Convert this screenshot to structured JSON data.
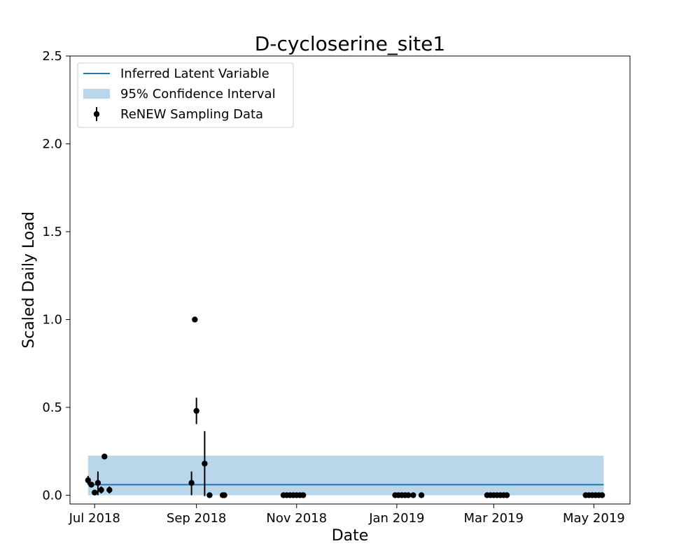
{
  "chart_data": {
    "type": "line",
    "title": "D-cycloserine_site1",
    "xlabel": "Date",
    "ylabel": "Scaled Daily Load",
    "x_axis_type": "date",
    "xlim": [
      "2018-06-16",
      "2019-05-23"
    ],
    "ylim": [
      -0.05,
      2.5
    ],
    "x_ticks": [
      {
        "date": "2018-07-01",
        "label": "Jul 2018"
      },
      {
        "date": "2018-09-01",
        "label": "Sep 2018"
      },
      {
        "date": "2018-11-01",
        "label": "Nov 2018"
      },
      {
        "date": "2019-01-01",
        "label": "Jan 2019"
      },
      {
        "date": "2019-03-01",
        "label": "Mar 2019"
      },
      {
        "date": "2019-05-01",
        "label": "May 2019"
      }
    ],
    "y_ticks": [
      0.0,
      0.5,
      1.0,
      1.5,
      2.0,
      2.5
    ],
    "y_tick_labels": [
      "0.0",
      "0.5",
      "1.0",
      "1.5",
      "2.0",
      "2.5"
    ],
    "grid": false,
    "legend_position": "top-left",
    "colors": {
      "latent_line": "#1f77b4",
      "confidence_band": "#bad6ea",
      "sampling_points": "#000000"
    },
    "series": [
      {
        "name": "Inferred Latent Variable",
        "kind": "line",
        "x": [
          "2018-06-27",
          "2019-05-07"
        ],
        "y": [
          0.06,
          0.06
        ]
      },
      {
        "name": "95% Confidence Interval",
        "kind": "band",
        "x": [
          "2018-06-27",
          "2019-05-07"
        ],
        "lower": [
          0.0,
          0.0
        ],
        "upper": [
          0.225,
          0.225
        ]
      },
      {
        "name": "ReNEW Sampling Data",
        "kind": "errorbar",
        "points": [
          {
            "x": "2018-06-27",
            "y": 0.085,
            "low": 0.06,
            "high": 0.11
          },
          {
            "x": "2018-06-29",
            "y": 0.06,
            "low": 0.05,
            "high": 0.075
          },
          {
            "x": "2018-07-01",
            "y": 0.015,
            "low": 0.005,
            "high": 0.025
          },
          {
            "x": "2018-07-03",
            "y": 0.07,
            "low": 0.0,
            "high": 0.135
          },
          {
            "x": "2018-07-05",
            "y": 0.03,
            "low": 0.01,
            "high": 0.05
          },
          {
            "x": "2018-07-07",
            "y": 0.22,
            "low": 0.215,
            "high": 0.225
          },
          {
            "x": "2018-07-10",
            "y": 0.03,
            "low": 0.01,
            "high": 0.05
          },
          {
            "x": "2018-08-29",
            "y": 0.07,
            "low": 0.0,
            "high": 0.135
          },
          {
            "x": "2018-08-31",
            "y": 1.0,
            "low": 0.995,
            "high": 1.005
          },
          {
            "x": "2018-09-01",
            "y": 0.48,
            "low": 0.405,
            "high": 0.555
          },
          {
            "x": "2018-09-06",
            "y": 0.18,
            "low": -0.005,
            "high": 0.365
          },
          {
            "x": "2018-09-09",
            "y": 0.0,
            "low": 0.0,
            "high": 0.0
          },
          {
            "x": "2018-09-17",
            "y": 0.0,
            "low": 0.0,
            "high": 0.0
          },
          {
            "x": "2018-09-18",
            "y": 0.0,
            "low": 0.0,
            "high": 0.0
          },
          {
            "x": "2018-10-24",
            "y": 0.0,
            "low": 0.0,
            "high": 0.0
          },
          {
            "x": "2018-10-26",
            "y": 0.0,
            "low": 0.0,
            "high": 0.0
          },
          {
            "x": "2018-10-28",
            "y": 0.0,
            "low": 0.0,
            "high": 0.0
          },
          {
            "x": "2018-10-30",
            "y": 0.0,
            "low": 0.0,
            "high": 0.0
          },
          {
            "x": "2018-11-01",
            "y": 0.0,
            "low": 0.0,
            "high": 0.0
          },
          {
            "x": "2018-11-03",
            "y": 0.0,
            "low": 0.0,
            "high": 0.0
          },
          {
            "x": "2018-11-05",
            "y": 0.0,
            "low": 0.0,
            "high": 0.0
          },
          {
            "x": "2018-12-31",
            "y": 0.0,
            "low": 0.0,
            "high": 0.0
          },
          {
            "x": "2019-01-02",
            "y": 0.0,
            "low": 0.0,
            "high": 0.0
          },
          {
            "x": "2019-01-04",
            "y": 0.0,
            "low": 0.0,
            "high": 0.0
          },
          {
            "x": "2019-01-06",
            "y": 0.0,
            "low": 0.0,
            "high": 0.0
          },
          {
            "x": "2019-01-08",
            "y": 0.0,
            "low": 0.0,
            "high": 0.0
          },
          {
            "x": "2019-01-11",
            "y": 0.0,
            "low": 0.0,
            "high": 0.0
          },
          {
            "x": "2019-01-16",
            "y": 0.0,
            "low": 0.0,
            "high": 0.0
          },
          {
            "x": "2019-02-25",
            "y": 0.0,
            "low": 0.0,
            "high": 0.0
          },
          {
            "x": "2019-02-27",
            "y": 0.0,
            "low": 0.0,
            "high": 0.0
          },
          {
            "x": "2019-03-01",
            "y": 0.0,
            "low": 0.0,
            "high": 0.0
          },
          {
            "x": "2019-03-03",
            "y": 0.0,
            "low": 0.0,
            "high": 0.0
          },
          {
            "x": "2019-03-05",
            "y": 0.0,
            "low": 0.0,
            "high": 0.0
          },
          {
            "x": "2019-03-07",
            "y": 0.0,
            "low": 0.0,
            "high": 0.0
          },
          {
            "x": "2019-03-09",
            "y": 0.0,
            "low": 0.0,
            "high": 0.0
          },
          {
            "x": "2019-04-26",
            "y": 0.0,
            "low": 0.0,
            "high": 0.0
          },
          {
            "x": "2019-04-28",
            "y": 0.0,
            "low": 0.0,
            "high": 0.0
          },
          {
            "x": "2019-04-30",
            "y": 0.0,
            "low": 0.0,
            "high": 0.0
          },
          {
            "x": "2019-05-02",
            "y": 0.0,
            "low": 0.0,
            "high": 0.0
          },
          {
            "x": "2019-05-04",
            "y": 0.0,
            "low": 0.0,
            "high": 0.0
          },
          {
            "x": "2019-05-06",
            "y": 0.0,
            "low": 0.0,
            "high": 0.0
          }
        ]
      }
    ]
  }
}
